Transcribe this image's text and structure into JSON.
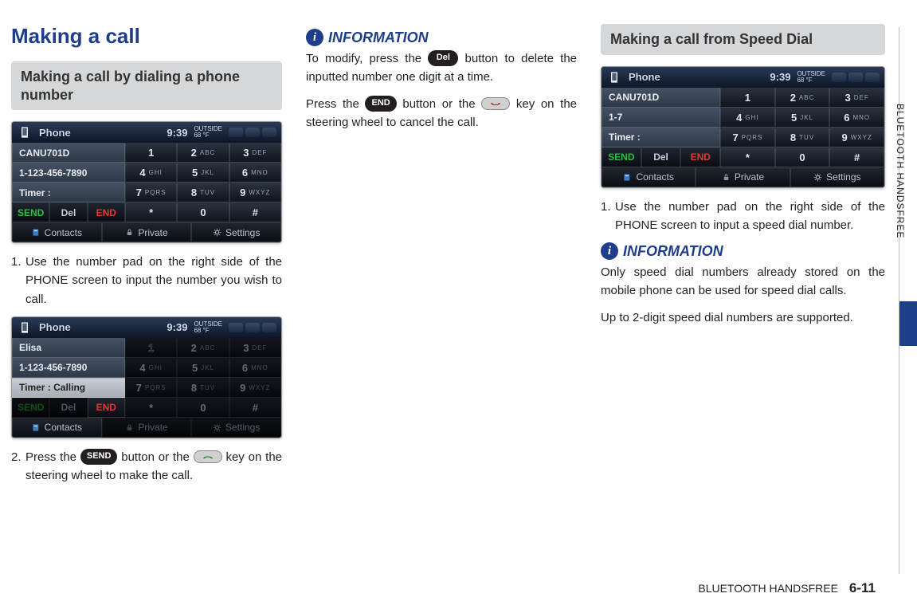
{
  "section_title": "Making a call",
  "colors": {
    "brand": "#1f3e8a",
    "sub_bg": "#d6d7d9",
    "text": "#231f20"
  },
  "col1": {
    "sub1": "Making a call by dialing a phone number",
    "step1": {
      "num": "1.",
      "text": "Use the number pad on the right side of the PHONE screen to input the number you wish to call."
    },
    "step2_a": "Press the ",
    "step2_btn": "SEND",
    "step2_b": " button or the ",
    "step2_c": " key on the steering wheel to make the call.",
    "step2_num": "2."
  },
  "col2": {
    "info_label": "INFORMATION",
    "p1_a": "To modify, press the ",
    "p1_btn": "Del",
    "p1_b": " button to delete the inputted number one digit at a time.",
    "p2_a": "Press the ",
    "p2_btn": "END",
    "p2_b": " button or the ",
    "p2_c": " key on the steering wheel to cancel the call."
  },
  "col3": {
    "sub1": "Making a call from Speed Dial",
    "step1": {
      "num": "1.",
      "text": "Use the number pad on the right side of the PHONE screen to input a speed dial num­ber."
    },
    "info_label": "INFORMATION",
    "p1": "Only speed dial numbers already stored on the mobile phone can be used for speed dial calls.",
    "p2": "Up to 2-digit speed dial numbers are suppor­ted."
  },
  "side_label": "BLUETOOTH HANDSFREE",
  "footer": {
    "label": "BLUETOOTH HANDSFREE",
    "page": "6-11"
  },
  "phone_common": {
    "title": "Phone",
    "time": "9:39",
    "temp_top": "OUTSIDE",
    "temp_bot": "68  °F",
    "keypad": [
      {
        "d": "1",
        "l": ""
      },
      {
        "d": "2",
        "l": "ABC"
      },
      {
        "d": "3",
        "l": "DEF"
      },
      {
        "d": "4",
        "l": "GHI"
      },
      {
        "d": "5",
        "l": "JKL"
      },
      {
        "d": "6",
        "l": "MNO"
      },
      {
        "d": "7",
        "l": "PQRS"
      },
      {
        "d": "8",
        "l": "TUV"
      },
      {
        "d": "9",
        "l": "WXYZ"
      },
      {
        "d": "*",
        "l": ""
      },
      {
        "d": "0",
        "l": ""
      },
      {
        "d": "#",
        "l": ""
      }
    ],
    "actions": [
      "SEND",
      "Del",
      "END"
    ],
    "footer_btns": [
      "Contacts",
      "Private",
      "Settings"
    ]
  },
  "screen1": {
    "rows": [
      "CANU701D",
      "1-123-456-7890",
      "Timer :"
    ],
    "row_light_idx": -1,
    "dim_keypad": false,
    "dim_actions": [],
    "dim_footer": [],
    "status_count": 3
  },
  "screen2": {
    "rows": [
      "Elisa",
      "1-123-456-7890",
      "Timer : Calling"
    ],
    "row_light_idx": 2,
    "dim_keypad": true,
    "first_key_outline": true,
    "dim_actions": [
      0,
      1
    ],
    "dim_footer": [
      1,
      2
    ],
    "status_count": 3
  },
  "screen3": {
    "rows": [
      "CANU701D",
      "1-7",
      "Timer :"
    ],
    "row_light_idx": -1,
    "dim_keypad": false,
    "dim_actions": [],
    "dim_footer": [],
    "status_count": 3
  }
}
